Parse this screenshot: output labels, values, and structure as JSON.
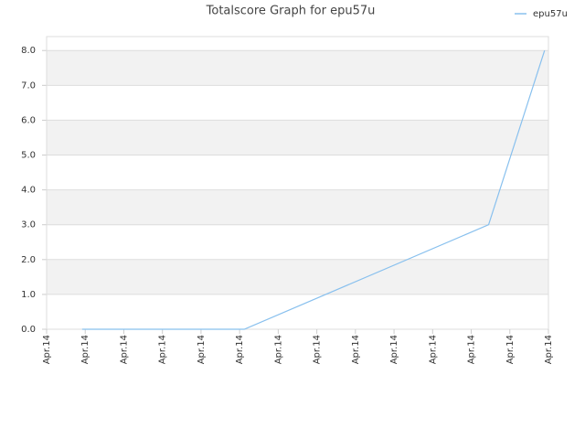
{
  "chart_data": {
    "type": "line",
    "title": "Totalscore Graph for epu57u",
    "x": [
      0.92,
      5.12,
      11.45,
      12.9
    ],
    "series": [
      {
        "name": "epu57u",
        "color": "#88c0ee",
        "values": [
          0,
          0,
          3,
          8
        ]
      }
    ],
    "xlim": [
      0,
      13
    ],
    "xticks": [
      {
        "value": 0,
        "label": "Apr.14"
      },
      {
        "value": 1,
        "label": "Apr.14"
      },
      {
        "value": 2,
        "label": "Apr.14"
      },
      {
        "value": 3,
        "label": "Apr.14"
      },
      {
        "value": 4,
        "label": "Apr.14"
      },
      {
        "value": 5,
        "label": "Apr.14"
      },
      {
        "value": 6,
        "label": "Apr.14"
      },
      {
        "value": 7,
        "label": "Apr.14"
      },
      {
        "value": 8,
        "label": "Apr.14"
      },
      {
        "value": 9,
        "label": "Apr.14"
      },
      {
        "value": 10,
        "label": "Apr.14"
      },
      {
        "value": 11,
        "label": "Apr.14"
      },
      {
        "value": 12,
        "label": "Apr.14"
      },
      {
        "value": 13,
        "label": "Apr.14"
      }
    ],
    "ylim": [
      0,
      8.4
    ],
    "yticks": [
      {
        "value": 0,
        "label": "0.0"
      },
      {
        "value": 1,
        "label": "1.0"
      },
      {
        "value": 2,
        "label": "2.0"
      },
      {
        "value": 3,
        "label": "3.0"
      },
      {
        "value": 4,
        "label": "4.0"
      },
      {
        "value": 5,
        "label": "5.0"
      },
      {
        "value": 6,
        "label": "6.0"
      },
      {
        "value": 7,
        "label": "7.0"
      },
      {
        "value": 8,
        "label": "8.0"
      }
    ],
    "grid": true,
    "legend": "top-right"
  }
}
